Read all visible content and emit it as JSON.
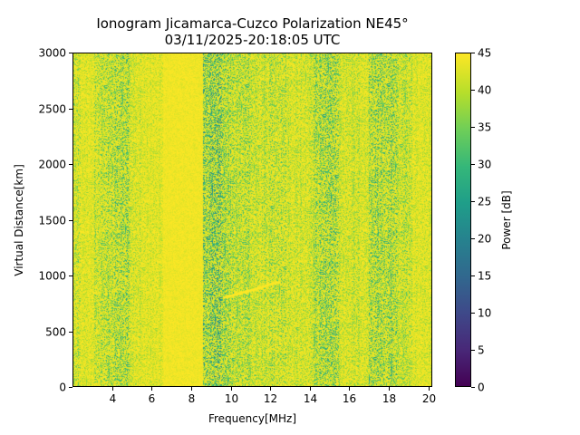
{
  "chart_data": [
    {
      "type": "heatmap",
      "title": "Ionogram Jicamarca-Cuzco Polarization NE45°",
      "subtitle": "03/11/2025-20:18:05 UTC",
      "xlabel": "Frequency[MHz]",
      "ylabel": "Virtual Distance[km]",
      "xlim": [
        2.0,
        20.2
      ],
      "ylim": [
        0,
        3000
      ],
      "x_ticks": [
        4,
        6,
        8,
        10,
        12,
        14,
        16,
        18,
        20
      ],
      "y_ticks": [
        0,
        500,
        1000,
        1500,
        2000,
        2500,
        3000
      ],
      "colorbar": {
        "label": "Power [dB]",
        "range": [
          0,
          45
        ],
        "ticks": [
          0,
          5,
          10,
          15,
          20,
          25,
          30,
          35,
          40,
          45
        ],
        "colormap": "viridis"
      },
      "background_level_db": 45,
      "frequency_bands": [
        {
          "f_start": 2.0,
          "f_end": 2.4,
          "mean_db": 39,
          "spread_db": 7
        },
        {
          "f_start": 2.4,
          "f_end": 3.1,
          "mean_db": 42,
          "spread_db": 5
        },
        {
          "f_start": 3.1,
          "f_end": 3.6,
          "mean_db": 39,
          "spread_db": 8
        },
        {
          "f_start": 3.6,
          "f_end": 4.1,
          "mean_db": 37,
          "spread_db": 9
        },
        {
          "f_start": 4.1,
          "f_end": 4.9,
          "mean_db": 36,
          "spread_db": 10
        },
        {
          "f_start": 4.9,
          "f_end": 5.5,
          "mean_db": 41,
          "spread_db": 6
        },
        {
          "f_start": 5.5,
          "f_end": 6.6,
          "mean_db": 42,
          "spread_db": 5
        },
        {
          "f_start": 6.6,
          "f_end": 8.6,
          "mean_db": 44.5,
          "spread_db": 1
        },
        {
          "f_start": 8.6,
          "f_end": 9.6,
          "mean_db": 31,
          "spread_db": 11
        },
        {
          "f_start": 9.6,
          "f_end": 10.0,
          "mean_db": 35,
          "spread_db": 9
        },
        {
          "f_start": 10.0,
          "f_end": 11.0,
          "mean_db": 37,
          "spread_db": 8
        },
        {
          "f_start": 11.0,
          "f_end": 12.0,
          "mean_db": 39,
          "spread_db": 7
        },
        {
          "f_start": 12.0,
          "f_end": 12.8,
          "mean_db": 38,
          "spread_db": 8
        },
        {
          "f_start": 12.8,
          "f_end": 14.2,
          "mean_db": 40,
          "spread_db": 6
        },
        {
          "f_start": 14.2,
          "f_end": 14.6,
          "mean_db": 36,
          "spread_db": 9
        },
        {
          "f_start": 14.6,
          "f_end": 15.5,
          "mean_db": 34,
          "spread_db": 10
        },
        {
          "f_start": 15.5,
          "f_end": 17.0,
          "mean_db": 40,
          "spread_db": 6
        },
        {
          "f_start": 17.0,
          "f_end": 18.4,
          "mean_db": 35,
          "spread_db": 10
        },
        {
          "f_start": 18.4,
          "f_end": 19.2,
          "mean_db": 39,
          "spread_db": 7
        },
        {
          "f_start": 19.2,
          "f_end": 20.2,
          "mean_db": 42,
          "spread_db": 5
        }
      ],
      "echo_trace": [
        {
          "frequency_mhz": 9.6,
          "distance_km": 800
        },
        {
          "frequency_mhz": 10.5,
          "distance_km": 840
        },
        {
          "frequency_mhz": 11.3,
          "distance_km": 880
        },
        {
          "frequency_mhz": 12.0,
          "distance_km": 920
        },
        {
          "frequency_mhz": 12.5,
          "distance_km": 940
        }
      ],
      "echo_trace_db": 45
    }
  ]
}
